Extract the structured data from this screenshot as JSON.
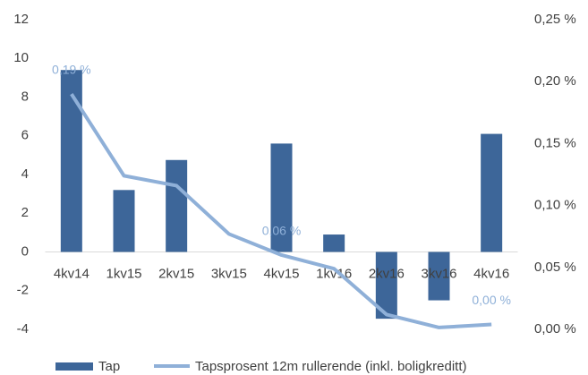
{
  "chart_data": {
    "type": "bar-line",
    "categories": [
      "4kv14",
      "1kv15",
      "2kv15",
      "3kv15",
      "4kv15",
      "1kv16",
      "2kv16",
      "3kv16",
      "4kv16"
    ],
    "series": [
      {
        "name": "Tap",
        "color": "#3d6699",
        "values": [
          9.4,
          3.2,
          4.75,
          0,
          5.6,
          0.9,
          -3.45,
          -2.5,
          6.1
        ]
      },
      {
        "name": "Tapsprosent 12m rullerende (inkl. boligkreditt)",
        "color": "#8fb0d8",
        "axis": "y2",
        "values": [
          0.19,
          0.124,
          0.116,
          0.077,
          0.06,
          0.049,
          0.012,
          0.0015,
          0.004
        ],
        "value_labels": [
          "0,19 %",
          null,
          null,
          null,
          "0,06 %",
          null,
          null,
          null,
          "0,00 %"
        ]
      }
    ],
    "ylim": [
      -4,
      12
    ],
    "yticks": [
      -4,
      -2,
      0,
      2,
      4,
      6,
      8,
      10,
      12
    ],
    "y2lim": [
      0,
      0.25
    ],
    "y2ticks": [
      {
        "value": 0,
        "label": "0,00 %"
      },
      {
        "value": 0.05,
        "label": "0,05 %"
      },
      {
        "value": 0.1,
        "label": "0,10 %"
      },
      {
        "value": 0.15,
        "label": "0,15 %"
      },
      {
        "value": 0.2,
        "label": "0,20 %"
      },
      {
        "value": 0.25,
        "label": "0,25 %"
      }
    ],
    "legend": "bottom"
  }
}
